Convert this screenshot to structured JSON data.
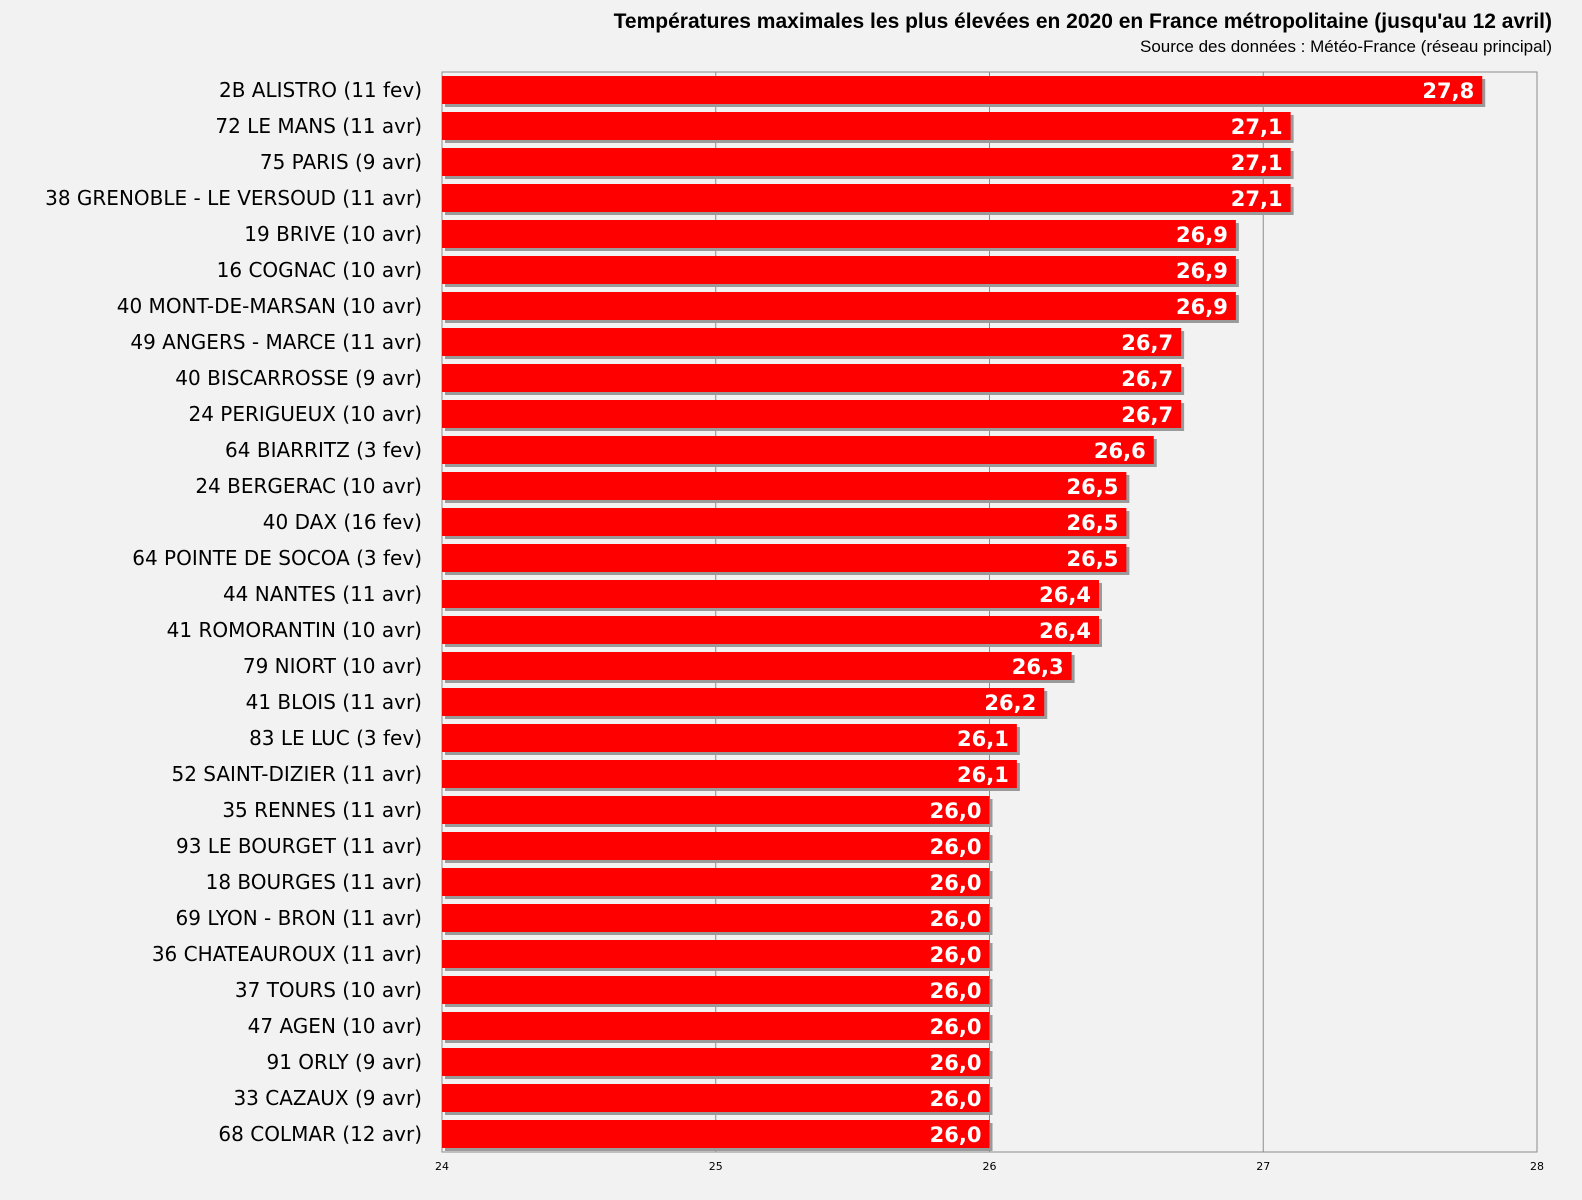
{
  "chart_data": {
    "type": "bar",
    "orientation": "horizontal",
    "title": "Températures maximales les plus élevées en 2020 en France métropolitaine (jusqu'au 12 avril)",
    "subtitle": "Source des données : Météo-France (réseau principal)",
    "xlim": [
      24,
      28
    ],
    "x_ticks": [
      "24",
      "25",
      "26",
      "27",
      "28"
    ],
    "grid": true,
    "bar_color": "#ff0000",
    "categories": [
      "2B ALISTRO (11 fev)",
      "72 LE MANS (11 avr)",
      "75 PARIS (9 avr)",
      "38 GRENOBLE - LE VERSOUD (11 avr)",
      "19 BRIVE (10 avr)",
      "16 COGNAC (10 avr)",
      "40 MONT-DE-MARSAN (10 avr)",
      "49 ANGERS - MARCE (11 avr)",
      "40 BISCARROSSE (9 avr)",
      "24 PERIGUEUX (10 avr)",
      "64 BIARRITZ (3 fev)",
      "24 BERGERAC (10 avr)",
      "40 DAX (16 fev)",
      "64 POINTE DE SOCOA (3 fev)",
      "44 NANTES (11 avr)",
      "41 ROMORANTIN (10 avr)",
      "79 NIORT (10 avr)",
      "41 BLOIS (11 avr)",
      "83 LE LUC (3 fev)",
      "52 SAINT-DIZIER (11 avr)",
      "35 RENNES (11 avr)",
      "93 LE BOURGET (11 avr)",
      "18 BOURGES (11 avr)",
      "69 LYON - BRON (11 avr)",
      "36 CHATEAUROUX (11 avr)",
      "37 TOURS (10 avr)",
      "47 AGEN (10 avr)",
      "91 ORLY (9 avr)",
      "33 CAZAUX (9 avr)",
      "68 COLMAR (12 avr)"
    ],
    "values": [
      27.8,
      27.1,
      27.1,
      27.1,
      26.9,
      26.9,
      26.9,
      26.7,
      26.7,
      26.7,
      26.6,
      26.5,
      26.5,
      26.5,
      26.4,
      26.4,
      26.3,
      26.2,
      26.1,
      26.1,
      26.0,
      26.0,
      26.0,
      26.0,
      26.0,
      26.0,
      26.0,
      26.0,
      26.0,
      26.0
    ],
    "value_labels": [
      "27,8",
      "27,1",
      "27,1",
      "27,1",
      "26,9",
      "26,9",
      "26,9",
      "26,7",
      "26,7",
      "26,7",
      "26,6",
      "26,5",
      "26,5",
      "26,5",
      "26,4",
      "26,4",
      "26,3",
      "26,2",
      "26,1",
      "26,1",
      "26,0",
      "26,0",
      "26,0",
      "26,0",
      "26,0",
      "26,0",
      "26,0",
      "26,0",
      "26,0",
      "26,0"
    ]
  }
}
